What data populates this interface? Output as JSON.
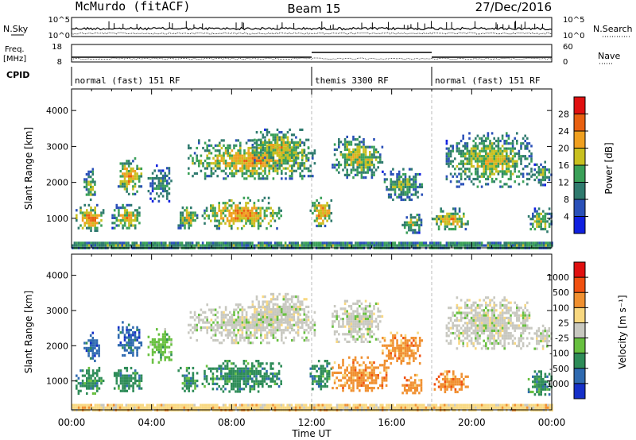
{
  "header": {
    "station": "McMurdo (fitACF)",
    "beam": "Beam 15",
    "date": "27/Dec/2016"
  },
  "status_panels": {
    "nsky_label": "N.Sky",
    "nsearch_label": "N.Search",
    "freq_label": "Freq.",
    "freq_unit": "[MHz]",
    "nave_label": "Nave",
    "cpid_label": "CPID",
    "noise_ticks_left": [
      "10^5",
      "10^0"
    ],
    "noise_ticks_right": [
      "10^5",
      "10^0"
    ],
    "freq_ticks": [
      "18",
      "8"
    ],
    "nave_ticks": [
      "60",
      "0"
    ]
  },
  "cpid_segments": [
    {
      "label": "normal (fast) 151 RF",
      "start_hour": 0
    },
    {
      "label": "themis 3300 RF",
      "start_hour": 12
    },
    {
      "label": "normal (fast) 151 RF",
      "start_hour": 18
    }
  ],
  "chart_data": [
    {
      "type": "heatmap",
      "name": "power",
      "ylabel": "Slant Range [km]",
      "xlabel": "",
      "yticks": [
        1000,
        2000,
        3000,
        4000
      ],
      "ylim": [
        180,
        4600
      ],
      "xlim": [
        0,
        24
      ],
      "colorbar": {
        "label": "Power [dB]",
        "ticks": [
          "4",
          "8",
          "12",
          "16",
          "20",
          "24",
          "28"
        ],
        "colors": [
          "#1020e0",
          "#2a50b8",
          "#2f7a6e",
          "#3aa058",
          "#c8c020",
          "#f0a020",
          "#e86010",
          "#e01010"
        ]
      },
      "regions": [
        {
          "t0": 0.2,
          "t1": 1.6,
          "r0": 650,
          "r1": 1400,
          "level": 0.65
        },
        {
          "t0": 0.6,
          "t1": 1.2,
          "r0": 1500,
          "r1": 2400,
          "level": 0.45
        },
        {
          "t0": 2.0,
          "t1": 3.5,
          "r0": 700,
          "r1": 1400,
          "level": 0.55
        },
        {
          "t0": 2.3,
          "t1": 3.5,
          "r0": 1700,
          "r1": 2700,
          "level": 0.6
        },
        {
          "t0": 3.8,
          "t1": 5.0,
          "r0": 1500,
          "r1": 2500,
          "level": 0.35
        },
        {
          "t0": 5.3,
          "t1": 6.3,
          "r0": 700,
          "r1": 1400,
          "level": 0.5
        },
        {
          "t0": 6.5,
          "t1": 10.5,
          "r0": 700,
          "r1": 1600,
          "level": 0.62
        },
        {
          "t0": 5.8,
          "t1": 12.2,
          "r0": 2100,
          "r1": 3200,
          "level": 0.58
        },
        {
          "t0": 9.0,
          "t1": 11.8,
          "r0": 2500,
          "r1": 3500,
          "level": 0.52
        },
        {
          "t0": 11.9,
          "t1": 13.0,
          "r0": 800,
          "r1": 1600,
          "level": 0.62
        },
        {
          "t0": 13.0,
          "t1": 15.5,
          "r0": 2100,
          "r1": 3300,
          "level": 0.5
        },
        {
          "t0": 15.5,
          "t1": 17.5,
          "r0": 1500,
          "r1": 2400,
          "level": 0.4
        },
        {
          "t0": 16.5,
          "t1": 17.5,
          "r0": 600,
          "r1": 1200,
          "level": 0.45
        },
        {
          "t0": 18.0,
          "t1": 19.8,
          "r0": 700,
          "r1": 1300,
          "level": 0.55
        },
        {
          "t0": 18.7,
          "t1": 23.0,
          "r0": 1900,
          "r1": 3400,
          "level": 0.5
        },
        {
          "t0": 22.8,
          "t1": 24.0,
          "r0": 600,
          "r1": 1300,
          "level": 0.45
        },
        {
          "t0": 23.0,
          "t1": 24.0,
          "r0": 1900,
          "r1": 2600,
          "level": 0.4
        },
        {
          "t0": 0.0,
          "t1": 24.0,
          "r0": 200,
          "r1": 350,
          "level": 0.3
        }
      ]
    },
    {
      "type": "heatmap",
      "name": "velocity",
      "ylabel": "Slant Range [km]",
      "xlabel": "Time UT",
      "xticks": [
        "00:00",
        "04:00",
        "08:00",
        "12:00",
        "16:00",
        "20:00",
        "00:00"
      ],
      "yticks": [
        1000,
        2000,
        3000,
        4000
      ],
      "ylim": [
        180,
        4600
      ],
      "xlim": [
        0,
        24
      ],
      "colorbar": {
        "label": "Velocity [m s⁻¹]",
        "ticks": [
          "1000",
          "500",
          "100",
          "25",
          "-25",
          "-100",
          "-500",
          "-1000"
        ],
        "colors": [
          "#1530c8",
          "#2f6ab0",
          "#2e8c58",
          "#68c040",
          "#c8c8c0",
          "#f8d880",
          "#f09030",
          "#f05010",
          "#e01010"
        ]
      },
      "regions": [
        {
          "t0": 0.2,
          "t1": 1.6,
          "r0": 650,
          "r1": 1400,
          "class": 2
        },
        {
          "t0": 0.6,
          "t1": 1.4,
          "r0": 1600,
          "r1": 2400,
          "class": 1
        },
        {
          "t0": 2.0,
          "t1": 3.5,
          "r0": 700,
          "r1": 1400,
          "class": 2
        },
        {
          "t0": 2.3,
          "t1": 3.5,
          "r0": 1700,
          "r1": 2700,
          "class": 1
        },
        {
          "t0": 3.8,
          "t1": 5.0,
          "r0": 1500,
          "r1": 2500,
          "class": 3
        },
        {
          "t0": 5.3,
          "t1": 6.3,
          "r0": 700,
          "r1": 1400,
          "class": 2
        },
        {
          "t0": 6.5,
          "t1": 10.5,
          "r0": 700,
          "r1": 1600,
          "class": 2
        },
        {
          "t0": 5.8,
          "t1": 12.2,
          "r0": 2100,
          "r1": 3200,
          "class": 4
        },
        {
          "t0": 9.0,
          "t1": 11.8,
          "r0": 2500,
          "r1": 3500,
          "class": 4
        },
        {
          "t0": 11.9,
          "t1": 13.0,
          "r0": 800,
          "r1": 1600,
          "class": 2
        },
        {
          "t0": 13.0,
          "t1": 15.5,
          "r0": 2100,
          "r1": 3300,
          "class": 4
        },
        {
          "t0": 13.0,
          "t1": 15.8,
          "r0": 700,
          "r1": 1700,
          "class": 6
        },
        {
          "t0": 15.5,
          "t1": 17.5,
          "r0": 1500,
          "r1": 2400,
          "class": 6
        },
        {
          "t0": 16.5,
          "t1": 17.5,
          "r0": 600,
          "r1": 1200,
          "class": 6
        },
        {
          "t0": 18.0,
          "t1": 19.8,
          "r0": 700,
          "r1": 1300,
          "class": 6
        },
        {
          "t0": 18.7,
          "t1": 23.0,
          "r0": 1900,
          "r1": 3400,
          "class": 4
        },
        {
          "t0": 22.8,
          "t1": 24.0,
          "r0": 600,
          "r1": 1300,
          "class": 2
        },
        {
          "t0": 23.0,
          "t1": 24.0,
          "r0": 1900,
          "r1": 2600,
          "class": 4
        },
        {
          "t0": 0.0,
          "t1": 24.0,
          "r0": 200,
          "r1": 350,
          "class": 5
        }
      ]
    }
  ]
}
